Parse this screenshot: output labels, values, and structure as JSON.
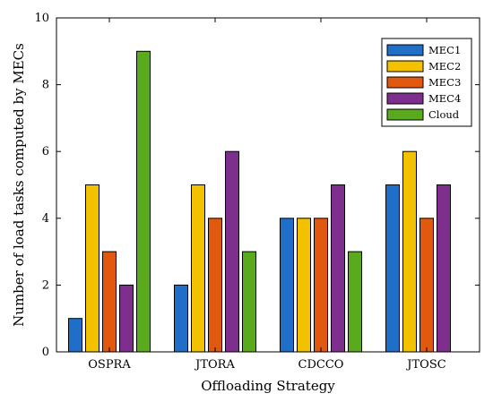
{
  "chart_data": {
    "type": "bar",
    "xlabel": "Offloading Strategy",
    "ylabel": "Number of load tasks computed by MECs",
    "categories": [
      "OSPRA",
      "JTORA",
      "CDCCO",
      "JTOSC"
    ],
    "ylim": [
      0,
      10
    ],
    "yticks": [
      0,
      2,
      4,
      6,
      8,
      10
    ],
    "grid": false,
    "legend_position": "top-right",
    "series": [
      {
        "name": "MEC1",
        "color": "#1f6ec8",
        "values": [
          1,
          2,
          4,
          5
        ]
      },
      {
        "name": "MEC2",
        "color": "#f2c200",
        "values": [
          5,
          5,
          4,
          6
        ]
      },
      {
        "name": "MEC3",
        "color": "#e0590f",
        "values": [
          3,
          4,
          4,
          4
        ]
      },
      {
        "name": "MEC4",
        "color": "#7e2f8e",
        "values": [
          2,
          6,
          5,
          5
        ]
      },
      {
        "name": "Cloud",
        "color": "#5aaa1e",
        "values": [
          9,
          3,
          3,
          0
        ]
      }
    ]
  }
}
